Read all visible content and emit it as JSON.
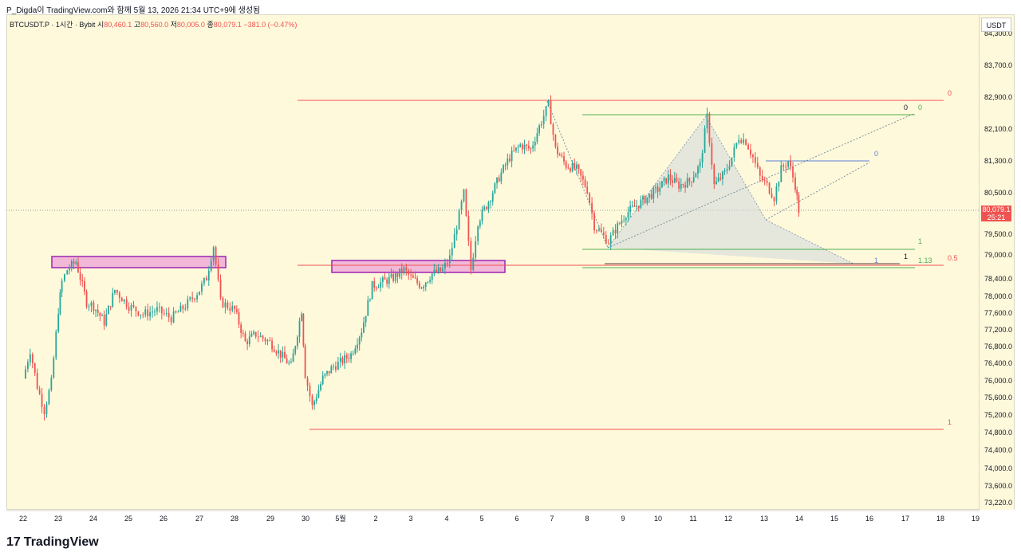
{
  "header": {
    "watermark": "P_Digda이 TradingView.com와 함께 5월 13, 2026 21:34 UTC+9에 생성됨"
  },
  "legend": {
    "symbol": "BTCUSDT.P · 1시간 · Bybit",
    "open_label": "시",
    "open": "80,460.1",
    "high_label": "고",
    "high": "80,560.0",
    "low_label": "저",
    "low": "80,005.0",
    "close_label": "종",
    "close": "80,079.1",
    "change": "−381.0 (−0.47%)"
  },
  "axis": {
    "currency": "USDT",
    "last_price": "80,079.1",
    "countdown": "25:21"
  },
  "brand": {
    "name": "TradingView",
    "mark": "17"
  },
  "colors": {
    "background": "#fff9dc",
    "up": "#26a69a",
    "down": "#ef5350",
    "fib_red": "#ef5350",
    "fib_green": "#4caf50",
    "fib_blue": "#5b7fd6",
    "zone_fill": "#f2b8d8",
    "zone_border": "#9c27b0",
    "pattern_fill": "#cfd8dc"
  },
  "chart_data": {
    "type": "candlestick",
    "y_ticks": [
      "84,300.0",
      "83,700.0",
      "82,900.0",
      "82,100.0",
      "81,300.0",
      "80,500.0",
      "79,500.0",
      "79,000.0",
      "78,400.0",
      "78,000.0",
      "77,600.0",
      "77,200.0",
      "76,800.0",
      "76,400.0",
      "76,000.0",
      "75,600.0",
      "75,200.0",
      "74,800.0",
      "74,400.0",
      "74,000.0",
      "73,600.0",
      "73,220.0"
    ],
    "x_ticks": [
      "22",
      "23",
      "24",
      "25",
      "26",
      "27",
      "28",
      "29",
      "30",
      "5월",
      "2",
      "3",
      "4",
      "5",
      "6",
      "7",
      "8",
      "9",
      "10",
      "11",
      "12",
      "13",
      "14",
      "15",
      "16",
      "17",
      "18",
      "19"
    ],
    "ylim": [
      73000,
      84500
    ],
    "last_price": 80079.1,
    "price_path": [
      [
        22.0,
        75900
      ],
      [
        22.2,
        76600
      ],
      [
        22.4,
        75700
      ],
      [
        22.6,
        75100
      ],
      [
        22.8,
        75800
      ],
      [
        23.0,
        77600
      ],
      [
        23.1,
        78300
      ],
      [
        23.25,
        78600
      ],
      [
        23.5,
        78800
      ],
      [
        23.8,
        77800
      ],
      [
        24.0,
        77700
      ],
      [
        24.3,
        77300
      ],
      [
        24.6,
        78100
      ],
      [
        25.0,
        77700
      ],
      [
        25.4,
        77500
      ],
      [
        25.8,
        77600
      ],
      [
        26.2,
        77400
      ],
      [
        26.6,
        77700
      ],
      [
        27.0,
        78100
      ],
      [
        27.2,
        78400
      ],
      [
        27.4,
        79200
      ],
      [
        27.6,
        77800
      ],
      [
        28.0,
        77600
      ],
      [
        28.3,
        76800
      ],
      [
        28.6,
        77000
      ],
      [
        29.0,
        76800
      ],
      [
        29.3,
        76500
      ],
      [
        29.6,
        76200
      ],
      [
        29.9,
        77600
      ],
      [
        30.0,
        76000
      ],
      [
        30.2,
        75200
      ],
      [
        30.5,
        75900
      ],
      [
        30.8,
        76200
      ],
      [
        31.0,
        76300
      ],
      [
        31.3,
        76500
      ],
      [
        31.6,
        77100
      ],
      [
        31.9,
        78200
      ],
      [
        32.2,
        78300
      ],
      [
        32.5,
        78400
      ],
      [
        32.8,
        78600
      ],
      [
        33.0,
        78400
      ],
      [
        33.3,
        78200
      ],
      [
        33.6,
        78500
      ],
      [
        33.9,
        78600
      ],
      [
        34.1,
        78900
      ],
      [
        34.3,
        79700
      ],
      [
        34.5,
        80500
      ],
      [
        34.7,
        78600
      ],
      [
        34.9,
        79800
      ],
      [
        35.2,
        80300
      ],
      [
        35.5,
        80900
      ],
      [
        35.8,
        81400
      ],
      [
        36.1,
        81700
      ],
      [
        36.4,
        81600
      ],
      [
        36.7,
        82300
      ],
      [
        36.9,
        82700
      ],
      [
        37.1,
        81600
      ],
      [
        37.4,
        81200
      ],
      [
        37.7,
        81100
      ],
      [
        38.0,
        80600
      ],
      [
        38.2,
        79700
      ],
      [
        38.4,
        79500
      ],
      [
        38.6,
        79300
      ],
      [
        38.8,
        79600
      ],
      [
        39.1,
        80000
      ],
      [
        39.4,
        80200
      ],
      [
        39.7,
        80400
      ],
      [
        40.0,
        80600
      ],
      [
        40.3,
        80900
      ],
      [
        40.6,
        80700
      ],
      [
        40.9,
        80800
      ],
      [
        41.2,
        81200
      ],
      [
        41.4,
        82400
      ],
      [
        41.6,
        80700
      ],
      [
        41.9,
        81000
      ],
      [
        42.1,
        81400
      ],
      [
        42.3,
        81900
      ],
      [
        42.5,
        81800
      ],
      [
        42.7,
        81400
      ],
      [
        42.9,
        80900
      ],
      [
        43.1,
        80700
      ],
      [
        43.3,
        80400
      ],
      [
        43.5,
        81100
      ],
      [
        43.7,
        81300
      ],
      [
        43.9,
        80700
      ],
      [
        44.0,
        80079
      ]
    ],
    "fib_levels": [
      {
        "label": "0",
        "color": "red"
      },
      {
        "label": "0.5",
        "color": "red"
      },
      {
        "label": "1",
        "color": "red"
      },
      {
        "label": "0",
        "color": "green"
      },
      {
        "label": "0",
        "color": "green"
      },
      {
        "label": "1",
        "color": "green"
      },
      {
        "label": "1",
        "color": "dark"
      },
      {
        "label": "1.13",
        "color": "green"
      },
      {
        "label": "0",
        "color": "blue"
      },
      {
        "label": "1",
        "color": "blue"
      }
    ]
  }
}
